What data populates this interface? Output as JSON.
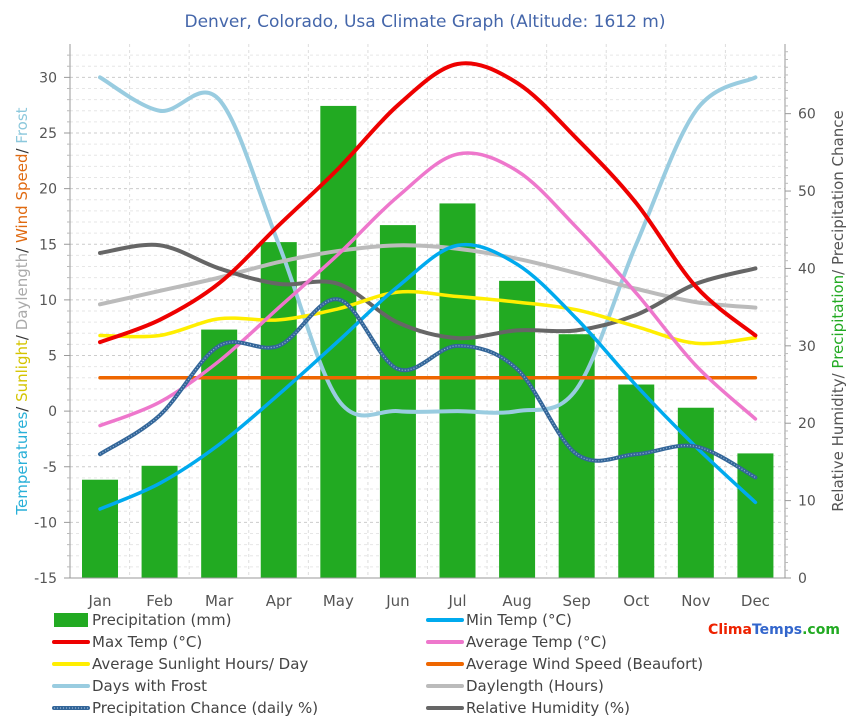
{
  "chart_data": {
    "type": "bar",
    "title": "Denver, Colorado, Usa Climate Graph (Altitude: 1612 m)",
    "categories": [
      "Jan",
      "Feb",
      "Mar",
      "Apr",
      "May",
      "Jun",
      "Jul",
      "Aug",
      "Sep",
      "Oct",
      "Nov",
      "Dec"
    ],
    "left_axis": {
      "label_parts": [
        {
          "text": "Temperatures",
          "color": "#29b0d8"
        },
        {
          "text": "/ ",
          "color": "#333333"
        },
        {
          "text": "Sunlight",
          "color": "#d4c400"
        },
        {
          "text": "/ ",
          "color": "#333333"
        },
        {
          "text": "Daylength",
          "color": "#aaaaaa"
        },
        {
          "text": "/ ",
          "color": "#333333"
        },
        {
          "text": "Wind Speed",
          "color": "#e06a10"
        },
        {
          "text": "/ ",
          "color": "#333333"
        },
        {
          "text": "Frost",
          "color": "#8cc8dc"
        }
      ],
      "ylim": [
        -15,
        33
      ],
      "ticks": [
        -15,
        -10,
        -5,
        0,
        5,
        10,
        15,
        20,
        25,
        30
      ]
    },
    "right_axis": {
      "label_parts": [
        {
          "text": "Relative Humidity",
          "color": "#555555"
        },
        {
          "text": "/ ",
          "color": "#555555"
        },
        {
          "text": "Precipitation",
          "color": "#22aa22"
        },
        {
          "text": "/ ",
          "color": "#555555"
        },
        {
          "text": "Precipitation Chance",
          "color": "#555555"
        }
      ],
      "ylim": [
        0,
        69
      ],
      "ticks": [
        0,
        10,
        20,
        30,
        40,
        50,
        60
      ]
    },
    "bars": {
      "name": "Precipitation (mm)",
      "color": "#22aa22",
      "axis": "right",
      "values": [
        12.7,
        14.5,
        32.1,
        43.4,
        61.0,
        45.6,
        48.4,
        38.4,
        31.5,
        25.0,
        22.0,
        16.1
      ]
    },
    "series": [
      {
        "name": "Min Temp (°C)",
        "color": "#00aaee",
        "axis": "left",
        "width": 3.5,
        "values": [
          -8.8,
          -6.5,
          -3.0,
          1.5,
          6.3,
          11.2,
          14.9,
          13.2,
          8.3,
          2.3,
          -3.2,
          -8.2
        ]
      },
      {
        "name": "Max Temp (°C)",
        "color": "#ee0000",
        "axis": "left",
        "width": 4,
        "values": [
          6.2,
          8.2,
          11.5,
          16.7,
          21.8,
          27.5,
          31.2,
          29.5,
          24.5,
          18.7,
          11.2,
          6.8
        ]
      },
      {
        "name": "Average Temp (°C)",
        "color": "#ee77cc",
        "axis": "left",
        "width": 3.5,
        "values": [
          -1.3,
          0.8,
          4.5,
          9.3,
          14.1,
          19.3,
          23.1,
          21.6,
          16.5,
          10.6,
          4.1,
          -0.7
        ]
      },
      {
        "name": "Average Sunlight Hours/ Day",
        "color": "#ffee00",
        "axis": "left",
        "width": 3.5,
        "values": [
          6.8,
          6.8,
          8.3,
          8.2,
          9.2,
          10.7,
          10.3,
          9.8,
          9.1,
          7.6,
          6.1,
          6.6
        ]
      },
      {
        "name": "Average Wind Speed (Beaufort)",
        "color": "#ee6600",
        "axis": "left",
        "width": 3.5,
        "values": [
          3,
          3,
          3,
          3,
          3,
          3,
          3,
          3,
          3,
          3,
          3,
          3
        ]
      },
      {
        "name": "Days with Frost",
        "color": "#99cce0",
        "axis": "left",
        "width": 4,
        "values": [
          30,
          27,
          28,
          15,
          1,
          0,
          0,
          0,
          2,
          15,
          27,
          30
        ]
      },
      {
        "name": "Daylength (Hours)",
        "color": "#bbbbbb",
        "axis": "left",
        "width": 4,
        "values": [
          9.6,
          10.8,
          12.0,
          13.4,
          14.4,
          14.9,
          14.6,
          13.7,
          12.4,
          11.0,
          9.8,
          9.3
        ]
      },
      {
        "name": "Precipitation Chance (daily %)",
        "color": "#336699",
        "axis": "right",
        "width": 4,
        "dotted": true,
        "values": [
          16,
          21,
          30,
          30,
          36,
          27,
          30,
          27,
          16,
          16,
          17,
          13
        ]
      },
      {
        "name": "Relative Humidity (%)",
        "color": "#666666",
        "axis": "right",
        "width": 4,
        "values": [
          42,
          43,
          40,
          38,
          38,
          33,
          31,
          32,
          32,
          34,
          38,
          40
        ]
      }
    ],
    "legend": {
      "placement": "bottom",
      "left": [
        {
          "label": "Precipitation (mm)",
          "color": "#22aa22",
          "kind": "bar"
        },
        {
          "label": "Max Temp (°C)",
          "color": "#ee0000",
          "kind": "line"
        },
        {
          "label": "Average Sunlight Hours/ Day",
          "color": "#ffee00",
          "kind": "line"
        },
        {
          "label": "Days with Frost",
          "color": "#99cce0",
          "kind": "line"
        },
        {
          "label": "Precipitation Chance (daily %)",
          "color": "#336699",
          "kind": "dotted"
        }
      ],
      "right": [
        {
          "label": "Min Temp (°C)",
          "color": "#00aaee",
          "kind": "line"
        },
        {
          "label": "Average Temp (°C)",
          "color": "#ee77cc",
          "kind": "line"
        },
        {
          "label": "Average Wind Speed (Beaufort)",
          "color": "#ee6600",
          "kind": "line"
        },
        {
          "label": "Daylength (Hours)",
          "color": "#bbbbbb",
          "kind": "line"
        },
        {
          "label": "Relative Humidity (%)",
          "color": "#666666",
          "kind": "line"
        }
      ]
    },
    "watermark": {
      "parts": [
        {
          "text": "Clima",
          "color": "#ee2200"
        },
        {
          "text": "Temps",
          "color": "#3366cc"
        },
        {
          "text": ".com",
          "color": "#22aa22"
        }
      ]
    },
    "grid": true
  }
}
